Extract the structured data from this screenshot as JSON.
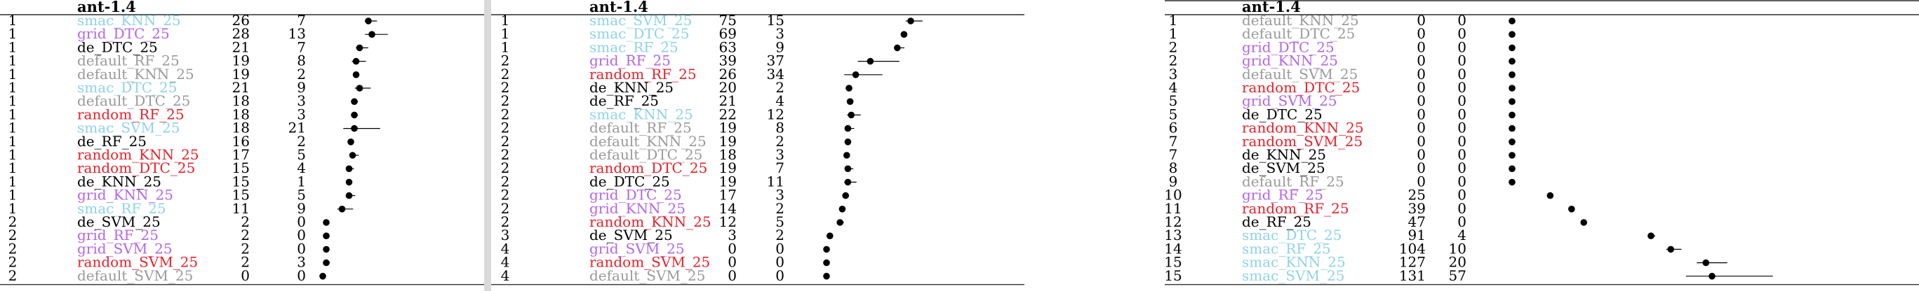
{
  "colors": {
    "black": "#000000",
    "smac": "#8fd3e8",
    "grid": "#b565e6",
    "default": "#9a9a9a",
    "random": "#e8202a",
    "de": "#000000"
  },
  "panels": [
    {
      "title": "ant-1.4",
      "scale_max": 28,
      "rows": [
        {
          "rank": "1",
          "name": "smac_KNN_25",
          "group": "smac",
          "median": "26",
          "iqr": "7",
          "m": 26,
          "q": 7
        },
        {
          "rank": "1",
          "name": "grid_DTC_25",
          "group": "grid",
          "median": "28",
          "iqr": "13",
          "m": 28,
          "q": 13
        },
        {
          "rank": "1",
          "name": "de_DTC_25",
          "group": "de",
          "median": "21",
          "iqr": "7",
          "m": 21,
          "q": 7
        },
        {
          "rank": "1",
          "name": "default_RF_25",
          "group": "default",
          "median": "19",
          "iqr": "8",
          "m": 19,
          "q": 8
        },
        {
          "rank": "1",
          "name": "default_KNN_25",
          "group": "default",
          "median": "19",
          "iqr": "2",
          "m": 19,
          "q": 2
        },
        {
          "rank": "1",
          "name": "smac_DTC_25",
          "group": "smac",
          "median": "21",
          "iqr": "9",
          "m": 21,
          "q": 9
        },
        {
          "rank": "1",
          "name": "default_DTC_25",
          "group": "default",
          "median": "18",
          "iqr": "3",
          "m": 18,
          "q": 3
        },
        {
          "rank": "1",
          "name": "random_RF_25",
          "group": "random",
          "median": "18",
          "iqr": "3",
          "m": 18,
          "q": 3
        },
        {
          "rank": "1",
          "name": "smac_SVM_25",
          "group": "smac",
          "median": "18",
          "iqr": "21",
          "m": 18,
          "q": 21
        },
        {
          "rank": "1",
          "name": "de_RF_25",
          "group": "de",
          "median": "16",
          "iqr": "2",
          "m": 16,
          "q": 2
        },
        {
          "rank": "1",
          "name": "random_KNN_25",
          "group": "random",
          "median": "17",
          "iqr": "5",
          "m": 17,
          "q": 5
        },
        {
          "rank": "1",
          "name": "random_DTC_25",
          "group": "random",
          "median": "15",
          "iqr": "4",
          "m": 15,
          "q": 4
        },
        {
          "rank": "1",
          "name": "de_KNN_25",
          "group": "de",
          "median": "15",
          "iqr": "1",
          "m": 15,
          "q": 1
        },
        {
          "rank": "1",
          "name": "grid_KNN_25",
          "group": "grid",
          "median": "15",
          "iqr": "5",
          "m": 15,
          "q": 5
        },
        {
          "rank": "1",
          "name": "smac_RF_25",
          "group": "smac",
          "median": "11",
          "iqr": "9",
          "m": 11,
          "q": 9
        },
        {
          "rank": "2",
          "name": "de_SVM_25",
          "group": "de",
          "median": "2",
          "iqr": "0",
          "m": 2,
          "q": 0
        },
        {
          "rank": "2",
          "name": "grid_RF_25",
          "group": "grid",
          "median": "2",
          "iqr": "0",
          "m": 2,
          "q": 0
        },
        {
          "rank": "2",
          "name": "grid_SVM_25",
          "group": "grid",
          "median": "2",
          "iqr": "0",
          "m": 2,
          "q": 0
        },
        {
          "rank": "2",
          "name": "random_SVM_25",
          "group": "random",
          "median": "2",
          "iqr": "3",
          "m": 2,
          "q": 3
        },
        {
          "rank": "2",
          "name": "default_SVM_25",
          "group": "default",
          "median": "0",
          "iqr": "0",
          "m": 0,
          "q": 0
        }
      ]
    },
    {
      "title": "ant-1.4",
      "scale_max": 75,
      "rows": [
        {
          "rank": "1",
          "name": "smac_SVM_25",
          "group": "smac",
          "median": "75",
          "iqr": "15",
          "m": 75,
          "q": 15
        },
        {
          "rank": "1",
          "name": "smac_DTC_25",
          "group": "smac",
          "median": "69",
          "iqr": "3",
          "m": 69,
          "q": 3
        },
        {
          "rank": "1",
          "name": "smac_RF_25",
          "group": "smac",
          "median": "63",
          "iqr": "9",
          "m": 63,
          "q": 9
        },
        {
          "rank": "2",
          "name": "grid_RF_25",
          "group": "grid",
          "median": "39",
          "iqr": "37",
          "m": 39,
          "q": 37
        },
        {
          "rank": "2",
          "name": "random_RF_25",
          "group": "random",
          "median": "26",
          "iqr": "34",
          "m": 26,
          "q": 34
        },
        {
          "rank": "2",
          "name": "de_KNN_25",
          "group": "de",
          "median": "20",
          "iqr": "2",
          "m": 20,
          "q": 2
        },
        {
          "rank": "2",
          "name": "de_RF_25",
          "group": "de",
          "median": "21",
          "iqr": "4",
          "m": 21,
          "q": 4
        },
        {
          "rank": "2",
          "name": "smac_KNN_25",
          "group": "smac",
          "median": "22",
          "iqr": "12",
          "m": 22,
          "q": 12
        },
        {
          "rank": "2",
          "name": "default_RF_25",
          "group": "default",
          "median": "19",
          "iqr": "8",
          "m": 19,
          "q": 8
        },
        {
          "rank": "2",
          "name": "default_KNN_25",
          "group": "default",
          "median": "19",
          "iqr": "2",
          "m": 19,
          "q": 2
        },
        {
          "rank": "2",
          "name": "default_DTC_25",
          "group": "default",
          "median": "18",
          "iqr": "3",
          "m": 18,
          "q": 3
        },
        {
          "rank": "2",
          "name": "random_DTC_25",
          "group": "random",
          "median": "19",
          "iqr": "7",
          "m": 19,
          "q": 7
        },
        {
          "rank": "2",
          "name": "de_DTC_25",
          "group": "de",
          "median": "19",
          "iqr": "11",
          "m": 19,
          "q": 11
        },
        {
          "rank": "2",
          "name": "grid_DTC_25",
          "group": "grid",
          "median": "17",
          "iqr": "3",
          "m": 17,
          "q": 3
        },
        {
          "rank": "2",
          "name": "grid_KNN_25",
          "group": "grid",
          "median": "14",
          "iqr": "2",
          "m": 14,
          "q": 2
        },
        {
          "rank": "2",
          "name": "random_KNN_25",
          "group": "random",
          "median": "12",
          "iqr": "5",
          "m": 12,
          "q": 5
        },
        {
          "rank": "3",
          "name": "de_SVM_25",
          "group": "de",
          "median": "3",
          "iqr": "2",
          "m": 3,
          "q": 2
        },
        {
          "rank": "4",
          "name": "grid_SVM_25",
          "group": "grid",
          "median": "0",
          "iqr": "0",
          "m": 0,
          "q": 0
        },
        {
          "rank": "4",
          "name": "random_SVM_25",
          "group": "random",
          "median": "0",
          "iqr": "0",
          "m": 0,
          "q": 0
        },
        {
          "rank": "4",
          "name": "default_SVM_25",
          "group": "default",
          "median": "0",
          "iqr": "0",
          "m": 0,
          "q": 0
        }
      ]
    },
    {
      "title": "ant-1.4",
      "scale_max": 131,
      "rows": [
        {
          "rank": "1",
          "name": "default_KNN_25",
          "group": "default",
          "median": "0",
          "iqr": "0",
          "m": 0,
          "q": 0
        },
        {
          "rank": "1",
          "name": "default_DTC_25",
          "group": "default",
          "median": "0",
          "iqr": "0",
          "m": 0,
          "q": 0
        },
        {
          "rank": "2",
          "name": "grid_DTC_25",
          "group": "grid",
          "median": "0",
          "iqr": "0",
          "m": 0,
          "q": 0
        },
        {
          "rank": "2",
          "name": "grid_KNN_25",
          "group": "grid",
          "median": "0",
          "iqr": "0",
          "m": 0,
          "q": 0
        },
        {
          "rank": "3",
          "name": "default_SVM_25",
          "group": "default",
          "median": "0",
          "iqr": "0",
          "m": 0,
          "q": 0
        },
        {
          "rank": "4",
          "name": "random_DTC_25",
          "group": "random",
          "median": "0",
          "iqr": "0",
          "m": 0,
          "q": 0
        },
        {
          "rank": "5",
          "name": "grid_SVM_25",
          "group": "grid",
          "median": "0",
          "iqr": "0",
          "m": 0,
          "q": 0
        },
        {
          "rank": "5",
          "name": "de_DTC_25",
          "group": "de",
          "median": "0",
          "iqr": "0",
          "m": 0,
          "q": 0
        },
        {
          "rank": "6",
          "name": "random_KNN_25",
          "group": "random",
          "median": "0",
          "iqr": "0",
          "m": 0,
          "q": 0
        },
        {
          "rank": "7",
          "name": "random_SVM_25",
          "group": "random",
          "median": "0",
          "iqr": "0",
          "m": 0,
          "q": 0
        },
        {
          "rank": "7",
          "name": "de_KNN_25",
          "group": "de",
          "median": "0",
          "iqr": "0",
          "m": 0,
          "q": 0
        },
        {
          "rank": "8",
          "name": "de_SVM_25",
          "group": "de",
          "median": "0",
          "iqr": "0",
          "m": 0,
          "q": 0
        },
        {
          "rank": "9",
          "name": "default_RF_25",
          "group": "default",
          "median": "0",
          "iqr": "0",
          "m": 0,
          "q": 0
        },
        {
          "rank": "10",
          "name": "grid_RF_25",
          "group": "grid",
          "median": "25",
          "iqr": "0",
          "m": 25,
          "q": 0
        },
        {
          "rank": "11",
          "name": "random_RF_25",
          "group": "random",
          "median": "39",
          "iqr": "0",
          "m": 39,
          "q": 0
        },
        {
          "rank": "12",
          "name": "de_RF_25",
          "group": "de",
          "median": "47",
          "iqr": "0",
          "m": 47,
          "q": 0
        },
        {
          "rank": "13",
          "name": "smac_DTC_25",
          "group": "smac",
          "median": "91",
          "iqr": "4",
          "m": 91,
          "q": 4
        },
        {
          "rank": "14",
          "name": "smac_RF_25",
          "group": "smac",
          "median": "104",
          "iqr": "10",
          "m": 104,
          "q": 10
        },
        {
          "rank": "15",
          "name": "smac_KNN_25",
          "group": "smac",
          "median": "127",
          "iqr": "20",
          "m": 127,
          "q": 20
        },
        {
          "rank": "15",
          "name": "smac_SVM_25",
          "group": "smac",
          "median": "131",
          "iqr": "57",
          "m": 131,
          "q": 57
        }
      ]
    }
  ]
}
